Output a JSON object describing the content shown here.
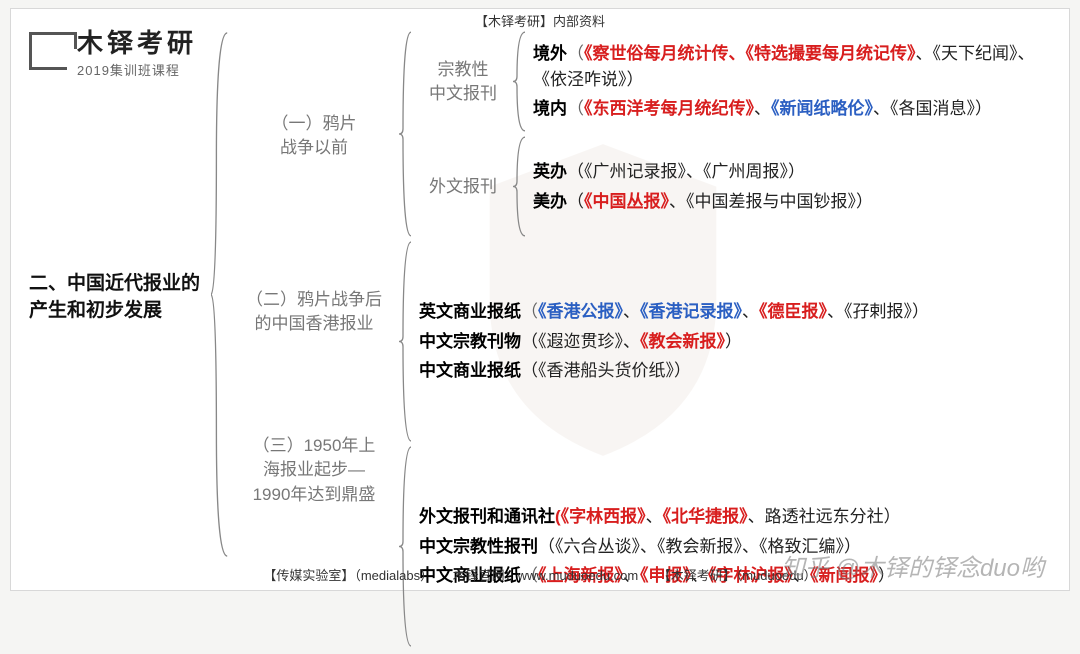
{
  "logo": {
    "title": "木铎考研",
    "subtitle": "2019集训班课程"
  },
  "top_note": "【木铎考研】内部资料",
  "root": "二、中国近代报业的产生和初步发展",
  "colors": {
    "red": "#d81e1e",
    "blue": "#2b5fc2",
    "gray": "#777777",
    "black": "#111111",
    "bg": "#ffffff"
  },
  "fonts": {
    "root_size": 19,
    "l2_size": 17,
    "line_size": 17
  },
  "level2": [
    {
      "label": "（一）鸦片\n战争以前",
      "flex": 2.1
    },
    {
      "label": "（二）鸦片战争后\n的中国香港报业",
      "flex": 1.35
    },
    {
      "label": "（三）1950年上\n海报业起步—\n1990年达到鼎盛",
      "flex": 1.75
    }
  ],
  "groups": [
    {
      "parent": 0,
      "label": "宗教性\n中文报刊",
      "lines": [
        [
          {
            "t": "境外",
            "c": "bold"
          },
          {
            "t": "（",
            "c": "gray"
          },
          {
            "t": "《察世俗每月统计传、《特选撮要每月统记传》",
            "c": "red"
          },
          {
            "t": "、《天下纪闻》、《依泾咋说》）",
            "c": "plain"
          }
        ],
        [
          {
            "t": "境内",
            "c": "bold"
          },
          {
            "t": "（",
            "c": "gray"
          },
          {
            "t": "《东西洋考每月统纪传》",
            "c": "red"
          },
          {
            "t": "、",
            "c": "plain"
          },
          {
            "t": "《新闻纸略伦》",
            "c": "blue"
          },
          {
            "t": "、《各国消息》）",
            "c": "plain"
          }
        ]
      ]
    },
    {
      "parent": 0,
      "label": "外文报刊",
      "lines": [
        [
          {
            "t": "英办",
            "c": "bold"
          },
          {
            "t": "（《广州记录报》、《广州周报》）",
            "c": "plain"
          }
        ],
        [
          {
            "t": "美办",
            "c": "bold"
          },
          {
            "t": "（",
            "c": "plain"
          },
          {
            "t": "《中国丛报》",
            "c": "red"
          },
          {
            "t": "、《中国差报与中国钞报》）",
            "c": "plain"
          }
        ]
      ]
    },
    {
      "parent": 1,
      "label": "",
      "lines": [
        [
          {
            "t": "英文商业报纸",
            "c": "bold"
          },
          {
            "t": "（",
            "c": "gray"
          },
          {
            "t": "《香港公报》",
            "c": "blue"
          },
          {
            "t": "、",
            "c": "plain"
          },
          {
            "t": "《香港记录报》",
            "c": "blue"
          },
          {
            "t": "、",
            "c": "plain"
          },
          {
            "t": "《德臣报》",
            "c": "red"
          },
          {
            "t": "、《孖剌报》）",
            "c": "plain"
          }
        ],
        [
          {
            "t": "中文宗教刊物",
            "c": "bold"
          },
          {
            "t": "（《遐迩贯珍》、",
            "c": "plain"
          },
          {
            "t": "《教会新报》",
            "c": "red"
          },
          {
            "t": "）",
            "c": "plain"
          }
        ],
        [
          {
            "t": "中文商业报纸",
            "c": "bold"
          },
          {
            "t": "（《香港船头货价纸》）",
            "c": "plain"
          }
        ]
      ]
    },
    {
      "parent": 2,
      "label": "",
      "lines": [
        [
          {
            "t": "外文报刊和通讯社",
            "c": "bold"
          },
          {
            "t": "(",
            "c": "red"
          },
          {
            "t": "《字林西报》",
            "c": "red"
          },
          {
            "t": "、",
            "c": "plain"
          },
          {
            "t": "《北华捷报》",
            "c": "red"
          },
          {
            "t": "、路透社远东分社）",
            "c": "plain"
          }
        ],
        [
          {
            "t": "中文宗教性报刊",
            "c": "bold"
          },
          {
            "t": "（《六合丛谈》、《教会新报》、《格致汇编》）",
            "c": "plain"
          }
        ],
        [
          {
            "t": "中文商业报纸",
            "c": "bold"
          },
          {
            "t": "（",
            "c": "gray"
          },
          {
            "t": "《上海新报》",
            "c": "red"
          },
          {
            "t": "、",
            "c": "plain"
          },
          {
            "t": "《申报》",
            "c": "red"
          },
          {
            "t": "、",
            "c": "plain"
          },
          {
            "t": "《字林沪报》",
            "c": "red"
          },
          {
            "t": "、",
            "c": "plain"
          },
          {
            "t": "《新闻报》",
            "c": "red"
          },
          {
            "t": "）",
            "c": "plain"
          }
        ]
      ]
    }
  ],
  "footer": "【传媒实验室】（medialabs）　　木铎官网：www.muduoedu.com　　【木铎考研】（muduoedu）",
  "watermark": "知乎 @木铎的铎念duo哟"
}
